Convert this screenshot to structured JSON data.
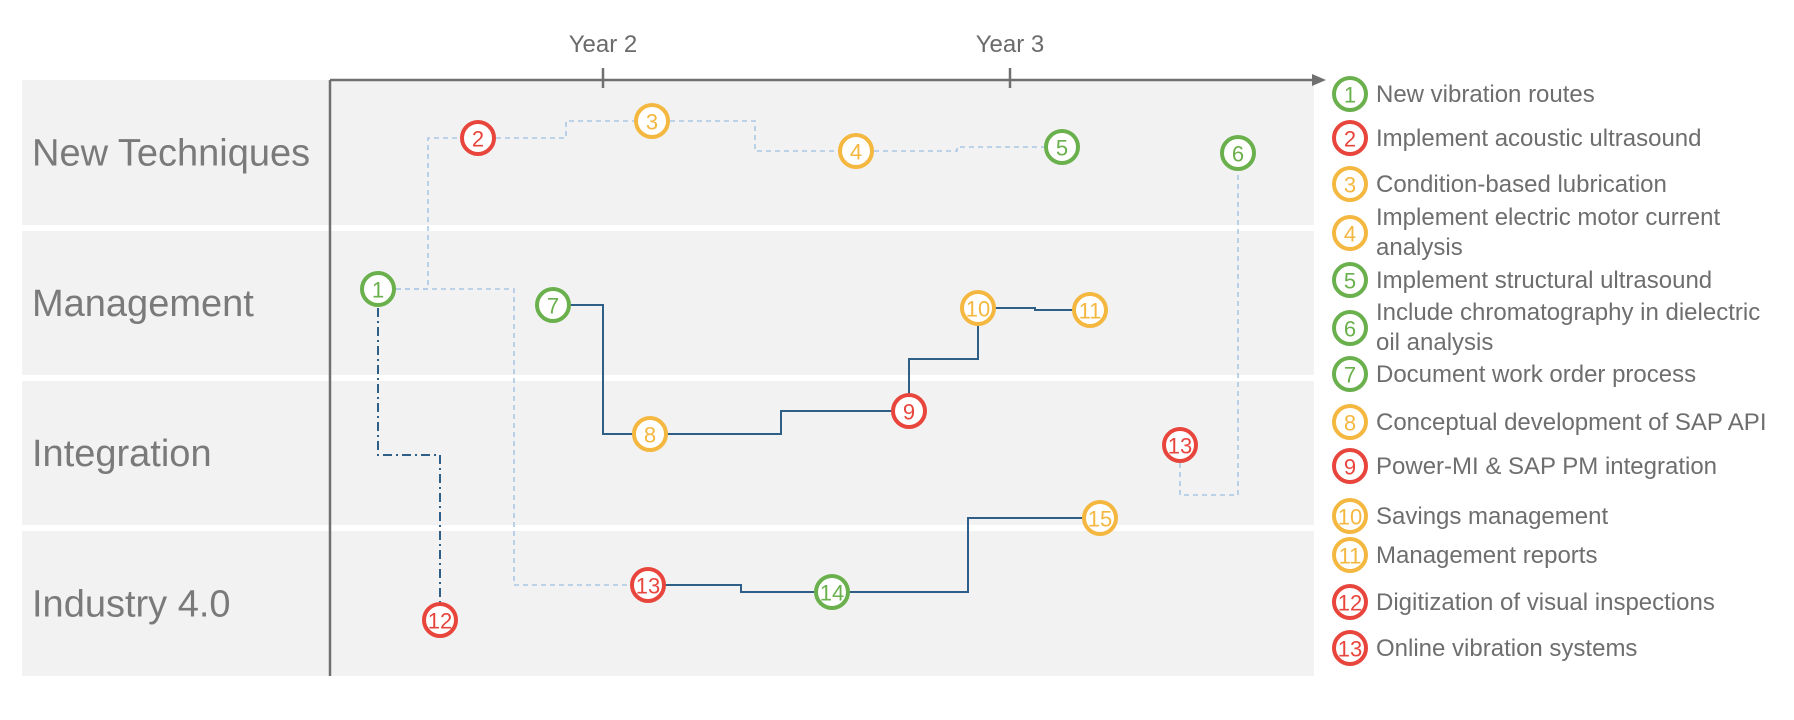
{
  "colors": {
    "green": "#6ab04c",
    "red": "#e8453c",
    "yellow": "#f4b73f",
    "lane_bg": "#f2f2f2",
    "axis": "#707070",
    "dashed_line": "#a9c8e6",
    "solid_line": "#2f5f86"
  },
  "timeline": {
    "years": [
      {
        "id": "year2",
        "label": "Year 2"
      },
      {
        "id": "year3",
        "label": "Year 3"
      }
    ]
  },
  "lanes": [
    {
      "id": "new-techniques",
      "label": "New Techniques"
    },
    {
      "id": "management",
      "label": "Management"
    },
    {
      "id": "integration",
      "label": "Integration"
    },
    {
      "id": "industry-4",
      "label": "Industry 4.0"
    }
  ],
  "nodes": [
    {
      "id": "n1",
      "num": "1",
      "status": "green",
      "lane": "management"
    },
    {
      "id": "n2",
      "num": "2",
      "status": "red",
      "lane": "new-techniques"
    },
    {
      "id": "n3",
      "num": "3",
      "status": "yellow",
      "lane": "new-techniques"
    },
    {
      "id": "n4",
      "num": "4",
      "status": "yellow",
      "lane": "new-techniques"
    },
    {
      "id": "n5",
      "num": "5",
      "status": "green",
      "lane": "new-techniques"
    },
    {
      "id": "n6",
      "num": "6",
      "status": "green",
      "lane": "new-techniques"
    },
    {
      "id": "n7",
      "num": "7",
      "status": "green",
      "lane": "management"
    },
    {
      "id": "n8",
      "num": "8",
      "status": "yellow",
      "lane": "integration"
    },
    {
      "id": "n9",
      "num": "9",
      "status": "red",
      "lane": "integration"
    },
    {
      "id": "n10",
      "num": "10",
      "status": "yellow",
      "lane": "management"
    },
    {
      "id": "n11",
      "num": "11",
      "status": "yellow",
      "lane": "management"
    },
    {
      "id": "n12",
      "num": "12",
      "status": "red",
      "lane": "industry-4"
    },
    {
      "id": "n13a",
      "num": "13",
      "status": "red",
      "lane": "integration"
    },
    {
      "id": "n13b",
      "num": "13",
      "status": "red",
      "lane": "industry-4"
    },
    {
      "id": "n14",
      "num": "14",
      "status": "green",
      "lane": "industry-4"
    },
    {
      "id": "n15",
      "num": "15",
      "status": "yellow",
      "lane": "industry-4"
    }
  ],
  "legend": [
    {
      "num": "1",
      "status": "green",
      "label": [
        "New vibration routes"
      ]
    },
    {
      "num": "2",
      "status": "red",
      "label": [
        "Implement acoustic ultrasound"
      ]
    },
    {
      "num": "3",
      "status": "yellow",
      "label": [
        "Condition-based lubrication"
      ]
    },
    {
      "num": "4",
      "status": "yellow",
      "label": [
        "Implement electric motor current",
        "analysis"
      ]
    },
    {
      "num": "5",
      "status": "green",
      "label": [
        "Implement structural ultrasound"
      ]
    },
    {
      "num": "6",
      "status": "green",
      "label": [
        "Include chromatography in dielectric",
        "oil analysis"
      ]
    },
    {
      "num": "7",
      "status": "green",
      "label": [
        "Document work order process"
      ]
    },
    {
      "num": "8",
      "status": "yellow",
      "label": [
        "Conceptual development of SAP API"
      ]
    },
    {
      "num": "9",
      "status": "red",
      "label": [
        "Power-MI & SAP PM integration"
      ]
    },
    {
      "num": "10",
      "status": "yellow",
      "label": [
        "Savings management"
      ]
    },
    {
      "num": "11",
      "status": "yellow",
      "label": [
        "Management reports"
      ]
    },
    {
      "num": "12",
      "status": "red",
      "label": [
        "Digitization of visual inspections"
      ]
    },
    {
      "num": "13",
      "status": "red",
      "label": [
        "Online vibration systems"
      ]
    }
  ]
}
